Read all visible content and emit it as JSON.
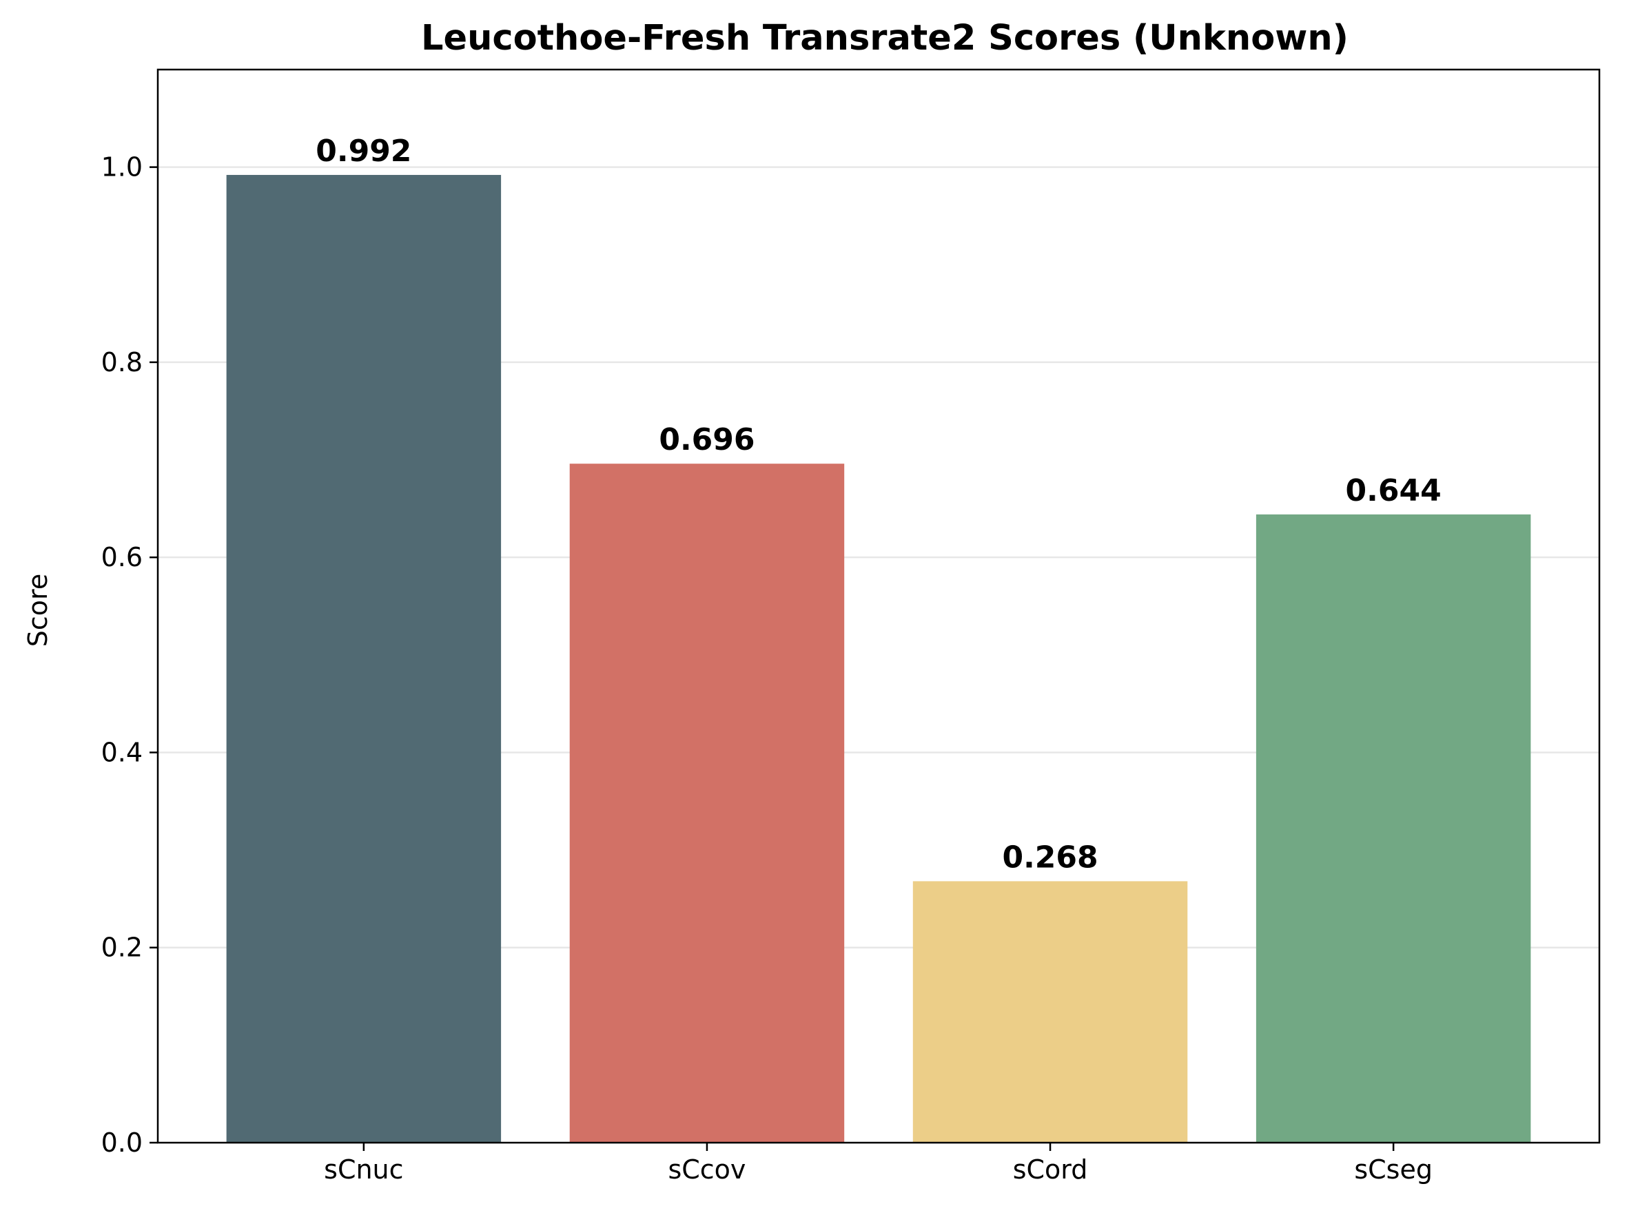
{
  "chart_data": {
    "type": "bar",
    "title": "Leucothoe-Fresh Transrate2 Scores (Unknown)",
    "xlabel": "",
    "ylabel": "Score",
    "categories": [
      "sCnuc",
      "sCcov",
      "sCord",
      "sCseg"
    ],
    "values": [
      0.992,
      0.696,
      0.268,
      0.644
    ],
    "value_labels": [
      "0.992",
      "0.696",
      "0.268",
      "0.644"
    ],
    "colors": [
      "#516a73",
      "#d27166",
      "#ecce88",
      "#72a884"
    ],
    "ylim": [
      0,
      1.1
    ],
    "yticks": [
      0.0,
      0.2,
      0.4,
      0.6,
      0.8,
      1.0
    ],
    "ytick_labels": [
      "0.0",
      "0.2",
      "0.4",
      "0.6",
      "0.8",
      "1.0"
    ],
    "grid": "horizontal",
    "legend": "none"
  }
}
